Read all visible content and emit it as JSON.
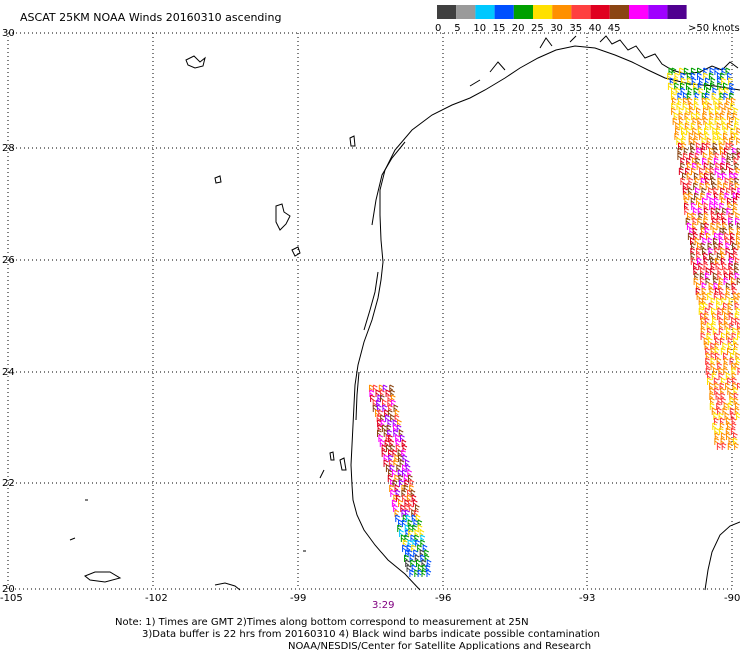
{
  "title": "ASCAT 25KM NOAA Winds 20160310 ascending",
  "legend": {
    "unit": ">50 knots",
    "bins": [
      {
        "label": "0",
        "color": "#404040"
      },
      {
        "label": "5",
        "color": "#9a9a9a"
      },
      {
        "label": "10",
        "color": "#00c8ff"
      },
      {
        "label": "15",
        "color": "#0050ff"
      },
      {
        "label": "20",
        "color": "#00a000"
      },
      {
        "label": "25",
        "color": "#ffe000"
      },
      {
        "label": "30",
        "color": "#ff9000"
      },
      {
        "label": "35",
        "color": "#ff4040"
      },
      {
        "label": "40",
        "color": "#e00020"
      },
      {
        "label": "45",
        "color": "#8b4513"
      },
      {
        "label": "",
        "color": "#ff00ff"
      },
      {
        "label": "",
        "color": "#a000ff"
      },
      {
        "label": "",
        "color": "#500090"
      }
    ]
  },
  "axes": {
    "lon_labels": [
      "-105",
      "-102",
      "-99",
      "-96",
      "-93",
      "-90"
    ],
    "lat_labels": [
      "30",
      "28",
      "26",
      "24",
      "22",
      "20"
    ]
  },
  "pass_time": "3:29",
  "notes": [
    "Note: 1) Times are GMT 2)Times along bottom correspond to measurement at 25N",
    "3)Data buffer is 22 hrs from 20160310 4) Black wind barbs indicate possible contamination",
    "NOAA/NESDIS/Center for Satellite Applications and Research"
  ]
}
